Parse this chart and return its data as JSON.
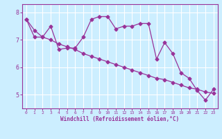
{
  "xlabel": "Windchill (Refroidissement éolien,°C)",
  "bg_color": "#cceeff",
  "line_color": "#993399",
  "grid_color": "#ffffff",
  "xlim": [
    -0.5,
    23.5
  ],
  "ylim": [
    4.5,
    8.3
  ],
  "yticks": [
    5,
    6,
    7,
    8
  ],
  "xticks": [
    0,
    1,
    2,
    3,
    4,
    5,
    6,
    7,
    8,
    9,
    10,
    11,
    12,
    13,
    14,
    15,
    16,
    17,
    18,
    19,
    20,
    21,
    22,
    23
  ],
  "series1_x": [
    0,
    1,
    2,
    3,
    4,
    5,
    6,
    7,
    8,
    9,
    10,
    11,
    12,
    13,
    14,
    15,
    16,
    17,
    18,
    19,
    20,
    21,
    22,
    23
  ],
  "series1_y": [
    7.75,
    7.1,
    7.1,
    7.5,
    6.65,
    6.7,
    6.7,
    7.1,
    7.75,
    7.85,
    7.85,
    7.4,
    7.5,
    7.5,
    7.6,
    7.6,
    6.3,
    6.9,
    6.5,
    5.8,
    5.6,
    5.15,
    4.8,
    5.2
  ],
  "series2_x": [
    0,
    1,
    2,
    3,
    4,
    5,
    6,
    7,
    8,
    9,
    10,
    11,
    12,
    13,
    14,
    15,
    16,
    17,
    18,
    19,
    20,
    21,
    22,
    23
  ],
  "series2_y": [
    7.75,
    7.35,
    7.1,
    7.0,
    6.85,
    6.75,
    6.65,
    6.5,
    6.4,
    6.3,
    6.2,
    6.1,
    6.0,
    5.9,
    5.8,
    5.7,
    5.6,
    5.55,
    5.45,
    5.35,
    5.25,
    5.2,
    5.1,
    5.05
  ],
  "marker": "D",
  "marker_size": 2.5,
  "linewidth": 0.9
}
